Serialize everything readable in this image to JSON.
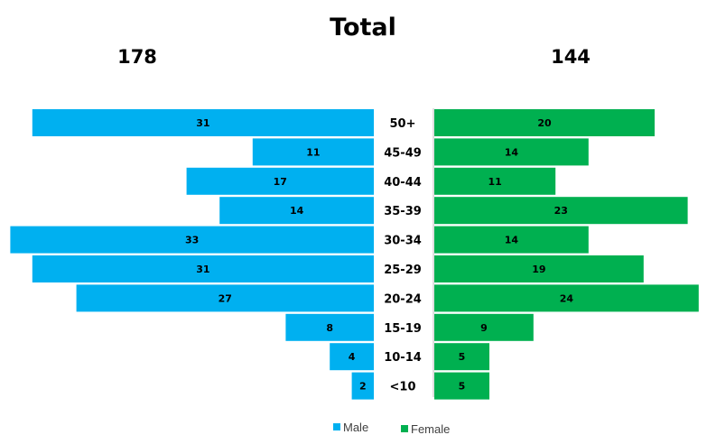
{
  "chart_data": {
    "type": "bar",
    "orientation": "horizontal-population-pyramid",
    "title": "Total",
    "totals": {
      "male": "178",
      "female": "144"
    },
    "categories": [
      "50+",
      "45-49",
      "40-44",
      "35-39",
      "30-34",
      "25-29",
      "20-24",
      "15-19",
      "10-14",
      "<10"
    ],
    "series": [
      {
        "name": "Male",
        "color": "#00B0F0",
        "values": [
          31,
          11,
          17,
          14,
          33,
          31,
          27,
          8,
          4,
          2
        ]
      },
      {
        "name": "Female",
        "color": "#00B050",
        "values": [
          20,
          14,
          11,
          23,
          14,
          19,
          24,
          9,
          5,
          5
        ]
      }
    ],
    "legend": "bottom-center",
    "grid": false
  }
}
